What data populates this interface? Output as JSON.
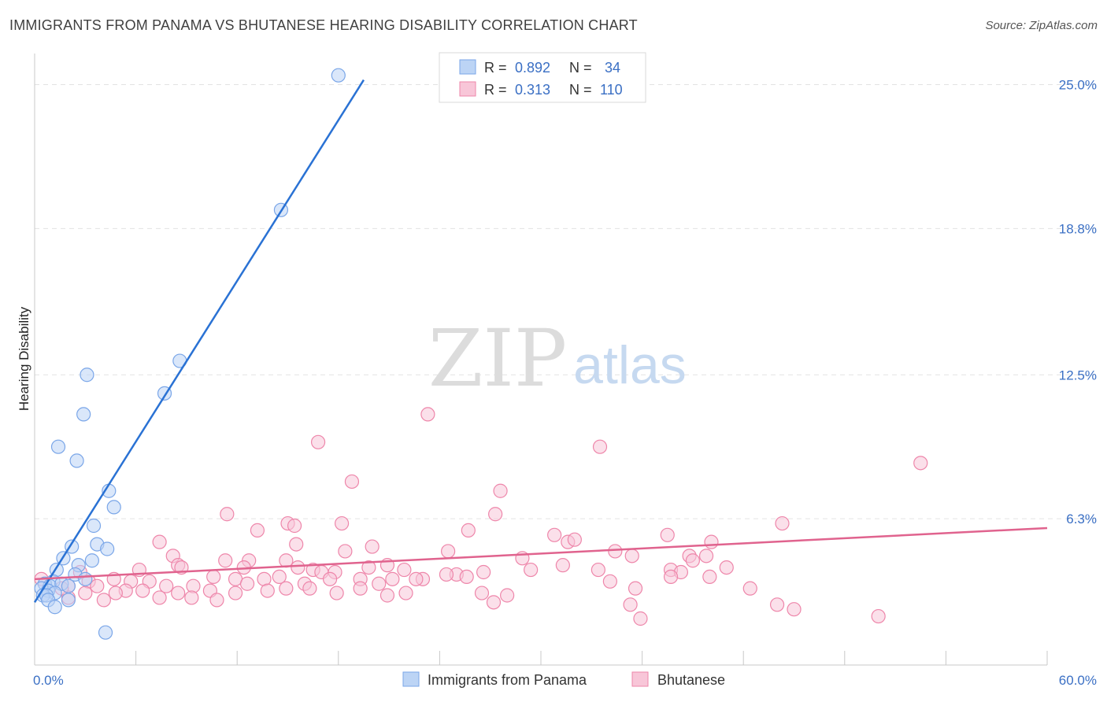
{
  "header": {
    "title": "IMMIGRANTS FROM PANAMA VS BHUTANESE HEARING DISABILITY CORRELATION CHART",
    "source": "Source: ZipAtlas.com"
  },
  "watermark": {
    "zip": "ZIP",
    "atlas": "atlas"
  },
  "legend": {
    "r_label": "R =",
    "n_label": "N =",
    "entries": [
      {
        "name": "Immigrants from Panama",
        "r": "0.892",
        "n": "34",
        "color": "#7aa6e8",
        "fill": "#bcd4f5"
      },
      {
        "name": "Bhutanese",
        "r": "0.313",
        "n": "110",
        "color": "#ee86aa",
        "fill": "#f8c6d8"
      }
    ]
  },
  "chart_data": {
    "type": "scatter",
    "title": "IMMIGRANTS FROM PANAMA VS BHUTANESE HEARING DISABILITY CORRELATION CHART",
    "xlabel": "",
    "ylabel": "Hearing Disability",
    "xlim": [
      0,
      60
    ],
    "ylim": [
      0,
      26
    ],
    "x_tick_labels": [
      "0.0%",
      "60.0%"
    ],
    "y_ticks": [
      {
        "value": 6.3,
        "label": "6.3%"
      },
      {
        "value": 12.5,
        "label": "12.5%"
      },
      {
        "value": 18.8,
        "label": "18.8%"
      },
      {
        "value": 25.0,
        "label": "25.0%"
      }
    ],
    "grid": true,
    "colors": {
      "panama": "#2a72d4",
      "bhutanese": "#e0638e",
      "grid": "#e3e3e3",
      "axis": "#c8c8c8",
      "tick_label": "#3a6fc4"
    },
    "series": [
      {
        "name": "Immigrants from Panama",
        "trend": {
          "x1": 0.0,
          "y1": 2.7,
          "x2": 19.5,
          "y2": 25.2
        },
        "points": [
          [
            18.0,
            25.4
          ],
          [
            14.6,
            19.6
          ],
          [
            8.6,
            13.1
          ],
          [
            7.7,
            11.7
          ],
          [
            3.1,
            12.5
          ],
          [
            2.9,
            10.8
          ],
          [
            1.4,
            9.4
          ],
          [
            2.5,
            8.8
          ],
          [
            4.4,
            7.5
          ],
          [
            4.7,
            6.8
          ],
          [
            3.5,
            6.0
          ],
          [
            2.2,
            5.1
          ],
          [
            3.7,
            5.2
          ],
          [
            4.3,
            5.0
          ],
          [
            1.7,
            4.6
          ],
          [
            3.4,
            4.5
          ],
          [
            1.3,
            4.1
          ],
          [
            2.6,
            4.3
          ],
          [
            2.4,
            3.9
          ],
          [
            3.0,
            3.7
          ],
          [
            1.1,
            3.6
          ],
          [
            0.6,
            3.5
          ],
          [
            0.9,
            3.4
          ],
          [
            1.6,
            3.5
          ],
          [
            2.0,
            3.4
          ],
          [
            0.4,
            3.3
          ],
          [
            0.8,
            3.2
          ],
          [
            1.2,
            3.1
          ],
          [
            0.5,
            3.0
          ],
          [
            0.7,
            3.0
          ],
          [
            0.8,
            2.8
          ],
          [
            2.0,
            2.8
          ],
          [
            1.2,
            2.5
          ],
          [
            4.2,
            1.4
          ]
        ]
      },
      {
        "name": "Bhutanese",
        "trend": {
          "x1": 0.0,
          "y1": 3.7,
          "x2": 60.0,
          "y2": 5.9
        },
        "points": [
          [
            23.3,
            10.8
          ],
          [
            16.8,
            9.6
          ],
          [
            33.5,
            9.4
          ],
          [
            52.5,
            8.7
          ],
          [
            18.8,
            7.9
          ],
          [
            27.6,
            7.5
          ],
          [
            11.4,
            6.5
          ],
          [
            27.3,
            6.5
          ],
          [
            15.0,
            6.1
          ],
          [
            18.2,
            6.1
          ],
          [
            44.3,
            6.1
          ],
          [
            13.2,
            5.8
          ],
          [
            15.4,
            6.0
          ],
          [
            25.7,
            5.8
          ],
          [
            30.8,
            5.6
          ],
          [
            37.5,
            5.6
          ],
          [
            7.4,
            5.3
          ],
          [
            31.6,
            5.3
          ],
          [
            32.0,
            5.4
          ],
          [
            15.5,
            5.2
          ],
          [
            20.0,
            5.1
          ],
          [
            40.1,
            5.3
          ],
          [
            18.4,
            4.9
          ],
          [
            24.5,
            4.9
          ],
          [
            34.4,
            4.9
          ],
          [
            38.8,
            4.7
          ],
          [
            39.8,
            4.7
          ],
          [
            8.2,
            4.7
          ],
          [
            28.9,
            4.6
          ],
          [
            35.4,
            4.7
          ],
          [
            39.0,
            4.5
          ],
          [
            12.7,
            4.5
          ],
          [
            11.3,
            4.5
          ],
          [
            14.9,
            4.5
          ],
          [
            20.9,
            4.3
          ],
          [
            31.3,
            4.3
          ],
          [
            8.5,
            4.3
          ],
          [
            8.7,
            4.2
          ],
          [
            15.6,
            4.2
          ],
          [
            12.4,
            4.2
          ],
          [
            19.8,
            4.2
          ],
          [
            16.5,
            4.1
          ],
          [
            17.8,
            4.0
          ],
          [
            21.9,
            4.1
          ],
          [
            29.4,
            4.1
          ],
          [
            33.4,
            4.1
          ],
          [
            37.7,
            4.1
          ],
          [
            38.3,
            4.0
          ],
          [
            41.0,
            4.2
          ],
          [
            6.2,
            4.1
          ],
          [
            2.7,
            4.0
          ],
          [
            25.0,
            3.9
          ],
          [
            17.0,
            4.0
          ],
          [
            24.4,
            3.9
          ],
          [
            26.6,
            4.0
          ],
          [
            19.3,
            3.7
          ],
          [
            23.0,
            3.7
          ],
          [
            25.6,
            3.8
          ],
          [
            37.7,
            3.8
          ],
          [
            40.0,
            3.8
          ],
          [
            10.6,
            3.8
          ],
          [
            13.6,
            3.7
          ],
          [
            3.2,
            3.6
          ],
          [
            4.7,
            3.7
          ],
          [
            5.7,
            3.6
          ],
          [
            6.8,
            3.6
          ],
          [
            11.9,
            3.7
          ],
          [
            14.5,
            3.8
          ],
          [
            17.5,
            3.7
          ],
          [
            21.2,
            3.7
          ],
          [
            22.6,
            3.7
          ],
          [
            34.1,
            3.6
          ],
          [
            12.6,
            3.5
          ],
          [
            16.0,
            3.5
          ],
          [
            20.4,
            3.5
          ],
          [
            2.0,
            3.4
          ],
          [
            3.7,
            3.4
          ],
          [
            7.8,
            3.4
          ],
          [
            9.4,
            3.4
          ],
          [
            14.9,
            3.3
          ],
          [
            16.3,
            3.3
          ],
          [
            19.3,
            3.3
          ],
          [
            35.6,
            3.3
          ],
          [
            42.4,
            3.3
          ],
          [
            5.4,
            3.2
          ],
          [
            6.4,
            3.2
          ],
          [
            10.4,
            3.2
          ],
          [
            13.8,
            3.2
          ],
          [
            22.0,
            3.1
          ],
          [
            26.5,
            3.1
          ],
          [
            3.0,
            3.1
          ],
          [
            4.8,
            3.1
          ],
          [
            8.5,
            3.1
          ],
          [
            11.9,
            3.1
          ],
          [
            17.9,
            3.1
          ],
          [
            20.9,
            3.0
          ],
          [
            28.0,
            3.0
          ],
          [
            7.4,
            2.9
          ],
          [
            9.3,
            2.9
          ],
          [
            2.0,
            2.9
          ],
          [
            4.1,
            2.8
          ],
          [
            10.8,
            2.8
          ],
          [
            27.2,
            2.7
          ],
          [
            35.3,
            2.6
          ],
          [
            44.0,
            2.6
          ],
          [
            45.0,
            2.4
          ],
          [
            1.6,
            3.3
          ],
          [
            0.4,
            3.7
          ],
          [
            35.9,
            2.0
          ],
          [
            50.0,
            2.1
          ]
        ]
      }
    ]
  }
}
